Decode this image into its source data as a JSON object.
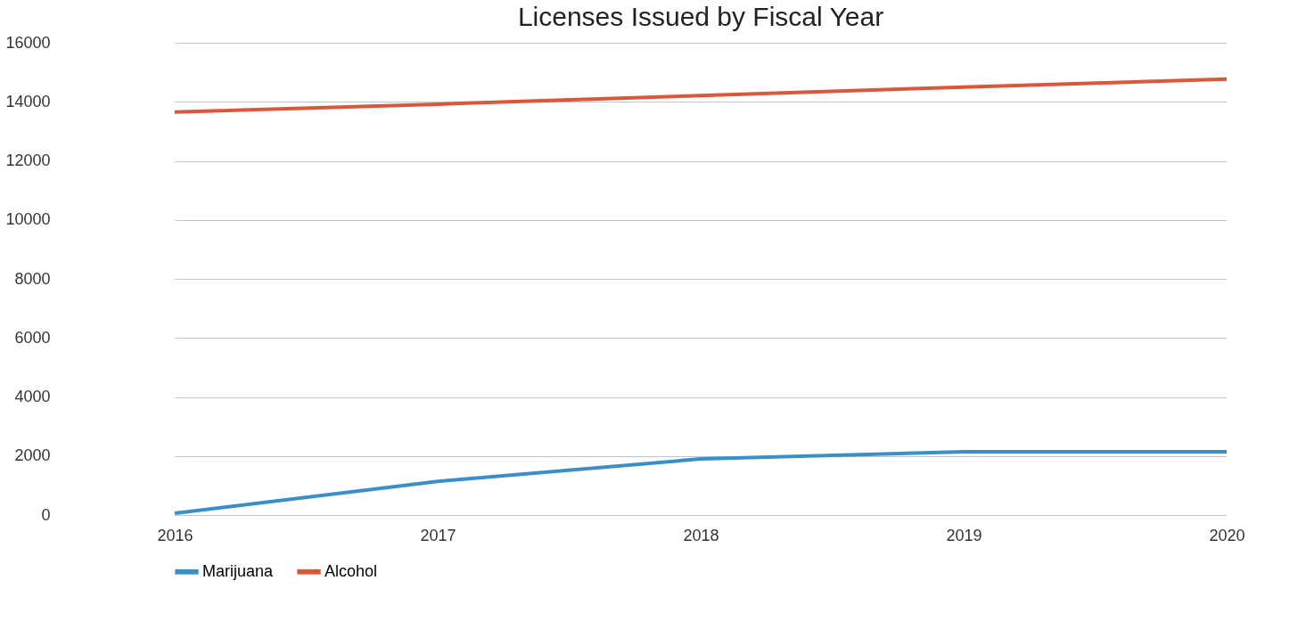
{
  "chart_data": {
    "type": "line",
    "title": "Licenses Issued by Fiscal Year",
    "categories": [
      "2016",
      "2017",
      "2018",
      "2019",
      "2020"
    ],
    "series": [
      {
        "name": "Marijuana",
        "color": "#3a8fc9",
        "values": [
          60,
          1140,
          1900,
          2140,
          2140
        ]
      },
      {
        "name": "Alcohol",
        "color": "#d9573b",
        "values": [
          13650,
          13920,
          14210,
          14500,
          14770
        ]
      }
    ],
    "ylim": [
      0,
      16000
    ],
    "yticks": [
      0,
      2000,
      4000,
      6000,
      8000,
      10000,
      12000,
      14000,
      16000
    ],
    "grid": "y",
    "legend": "bottom",
    "marker": "none",
    "line_style": "solid"
  }
}
